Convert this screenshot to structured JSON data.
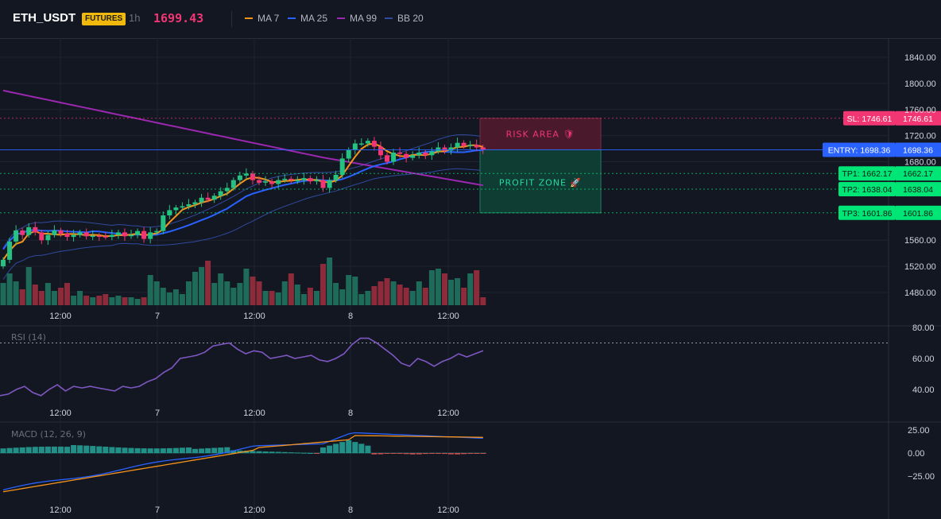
{
  "header": {
    "symbol": "ETH_USDT",
    "badge": "FUTURES",
    "timeframe": "1h",
    "last_price": "1699.43",
    "indicators": [
      {
        "label": "MA 7",
        "color": "#f7931a"
      },
      {
        "label": "MA 25",
        "color": "#2962ff"
      },
      {
        "label": "MA 99",
        "color": "#9c27b0"
      },
      {
        "label": "BB 20",
        "color": "#2f4a9e"
      }
    ]
  },
  "price_axis": {
    "ticks": [
      "1840.00",
      "1800.00",
      "1760.00",
      "1720.00",
      "1680.00",
      "1560.00",
      "1520.00",
      "1480.00"
    ]
  },
  "levels": [
    {
      "key": "sl",
      "label": "SL: 1746.61",
      "value": "1746.61",
      "color": "#f23674"
    },
    {
      "key": "entry",
      "label": "ENTRY: 1698.36",
      "value": "1698.36",
      "color": "#2962ff"
    },
    {
      "key": "tp1",
      "label": "TP1: 1662.17",
      "value": "1662.17",
      "color": "#00e676"
    },
    {
      "key": "tp2",
      "label": "TP2: 1638.04",
      "value": "1638.04",
      "color": "#00e676"
    },
    {
      "key": "tp3",
      "label": "TP3: 1601.86",
      "value": "1601.86",
      "color": "#00e676"
    }
  ],
  "zones": {
    "risk": "RISK AREA 🛡",
    "profit": "PROFIT ZONE 🚀"
  },
  "time_axis": [
    "12:00",
    "7",
    "12:00",
    "8",
    "12:00"
  ],
  "rsi": {
    "label": "RSI (14)",
    "ticks": [
      "80.00",
      "60.00",
      "40.00"
    ]
  },
  "macd": {
    "label": "MACD (12, 26, 9)",
    "ticks": [
      "25.00",
      "0.00",
      "−25.00"
    ]
  },
  "colors": {
    "up": "#26c281",
    "down": "#f23674",
    "bg": "#131722",
    "grid": "#1f2330",
    "axis_text": "#d1d4dc",
    "rsi": "#7e57c2",
    "macd": "#2962ff",
    "signal": "#f7931a"
  },
  "chart_data": {
    "type": "candlestick",
    "interval": "1h",
    "closes": [
      1530,
      1558,
      1575,
      1568,
      1580,
      1572,
      1560,
      1568,
      1575,
      1570,
      1565,
      1568,
      1572,
      1566,
      1567,
      1566,
      1565,
      1568,
      1572,
      1566,
      1568,
      1574,
      1562,
      1572,
      1574,
      1598,
      1606,
      1610,
      1612,
      1615,
      1618,
      1625,
      1622,
      1628,
      1635,
      1640,
      1652,
      1659,
      1662,
      1652,
      1648,
      1650,
      1646,
      1652,
      1654,
      1652,
      1652,
      1655,
      1650,
      1652,
      1640,
      1652,
      1660,
      1685,
      1698,
      1708,
      1708,
      1712,
      1703,
      1690,
      1680,
      1694,
      1692,
      1686,
      1690,
      1694,
      1690,
      1696,
      1702,
      1697,
      1702,
      1709,
      1704,
      1706,
      1702,
      1699
    ],
    "ma_levels": {
      "ma7_last": 1694,
      "ma25_last": 1670,
      "ma99_last": 1638
    },
    "rsi_series": [
      36,
      37,
      40,
      42,
      38,
      36,
      40,
      43,
      39,
      42,
      41,
      42,
      41,
      40,
      39,
      42,
      41,
      42,
      45,
      47,
      51,
      54,
      60,
      61,
      62,
      64,
      68,
      69,
      70,
      66,
      63,
      65,
      64,
      60,
      61,
      62,
      60,
      61,
      62,
      59,
      58,
      60,
      63,
      69,
      73,
      73,
      70,
      66,
      62,
      57,
      55,
      60,
      58,
      55,
      58,
      60,
      63,
      61,
      63,
      65
    ],
    "macd_hist_range": [
      -2,
      14
    ],
    "macd_line_range": [
      -42,
      23
    ]
  }
}
